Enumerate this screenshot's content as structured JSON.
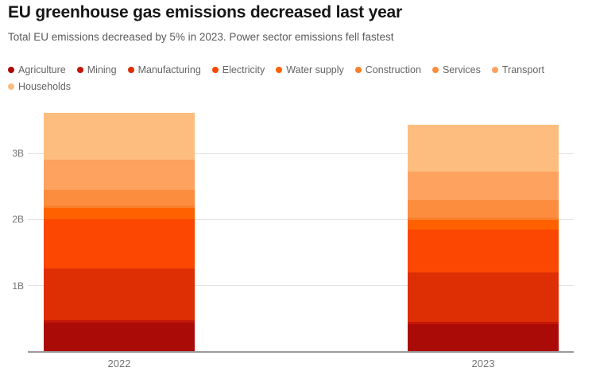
{
  "header": {
    "title": "EU greenhouse gas emissions decreased last year",
    "subtitle": "Total EU emissions decreased by 5% in 2023. Power sector emissions fell fastest"
  },
  "colors": {
    "grid": "#e1e1e1",
    "baseline": "#9b9b9b",
    "axis_text": "#757575",
    "legend_text": "#636363",
    "title_text": "#161616",
    "subtitle_text": "#5a5a5a"
  },
  "chart_data": {
    "type": "bar",
    "subtype": "stacked-vertical",
    "unit": "B tonnes CO2e",
    "categories": [
      "2022",
      "2023"
    ],
    "series": [
      {
        "name": "Agriculture",
        "color": "#ab0b06",
        "values": [
          0.44,
          0.42
        ]
      },
      {
        "name": "Mining",
        "color": "#c31708",
        "values": [
          0.04,
          0.04
        ]
      },
      {
        "name": "Manufacturing",
        "color": "#dd2e04",
        "values": [
          0.78,
          0.74
        ]
      },
      {
        "name": "Electricity",
        "color": "#fb4701",
        "values": [
          0.75,
          0.65
        ]
      },
      {
        "name": "Water supply",
        "color": "#ff6000",
        "values": [
          0.16,
          0.14
        ]
      },
      {
        "name": "Construction",
        "color": "#fc7e29",
        "values": [
          0.04,
          0.04
        ]
      },
      {
        "name": "Services",
        "color": "#fc8c3e",
        "values": [
          0.24,
          0.26
        ]
      },
      {
        "name": "Transport",
        "color": "#fda25f",
        "values": [
          0.46,
          0.44
        ]
      },
      {
        "name": "Households",
        "color": "#fdbd7e",
        "values": [
          0.7,
          0.7
        ]
      }
    ],
    "totals": [
      3.61,
      3.43
    ],
    "yticks": [
      {
        "value": 1,
        "label": "1B"
      },
      {
        "value": 2,
        "label": "2B"
      },
      {
        "value": 3,
        "label": "3B"
      }
    ],
    "ylim": [
      0,
      3.67
    ],
    "grid": true,
    "legend_position": "top"
  }
}
